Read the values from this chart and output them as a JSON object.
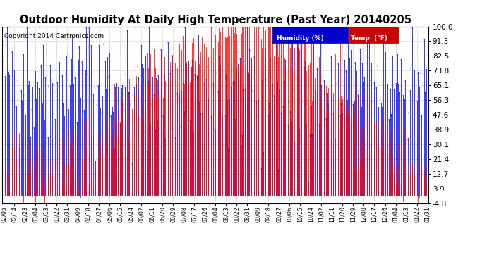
{
  "title": "Outdoor Humidity At Daily High Temperature (Past Year) 20140205",
  "copyright": "Copyright 2014 Cartronics.com",
  "yticks": [
    100.0,
    91.3,
    82.5,
    73.8,
    65.1,
    56.3,
    47.6,
    38.9,
    30.1,
    21.4,
    12.7,
    3.9,
    -4.8
  ],
  "ylim": [
    -4.8,
    100.0
  ],
  "humidity_color": "#0000ff",
  "temp_color": "#ff0000",
  "stem_color": "#000000",
  "bg_color": "#ffffff",
  "plot_bg_color": "#ffffff",
  "grid_color": "#bbbbbb",
  "legend_humidity_bg": "#0000cc",
  "legend_temp_bg": "#cc0000",
  "legend_humidity_text": "Humidity (%)",
  "legend_temp_text": "Temp  (°F)",
  "title_fontsize": 10.5,
  "copyright_fontsize": 6.5,
  "xtick_fontsize": 5.8,
  "ytick_fontsize": 7.5,
  "xtick_labels": [
    "02/05",
    "02/14",
    "02/23",
    "03/04",
    "03/13",
    "03/22",
    "03/31",
    "04/09",
    "04/18",
    "04/27",
    "05/06",
    "05/15",
    "05/24",
    "06/02",
    "06/11",
    "06/20",
    "06/29",
    "07/08",
    "07/17",
    "07/26",
    "08/04",
    "08/13",
    "08/22",
    "08/31",
    "09/09",
    "09/18",
    "09/27",
    "10/06",
    "10/15",
    "10/24",
    "11/02",
    "11/11",
    "11/20",
    "11/29",
    "12/08",
    "12/17",
    "12/26",
    "01/04",
    "01/13",
    "01/22",
    "01/31"
  ],
  "n_days": 365,
  "humidity_seed": 42,
  "temp_seed": 42
}
